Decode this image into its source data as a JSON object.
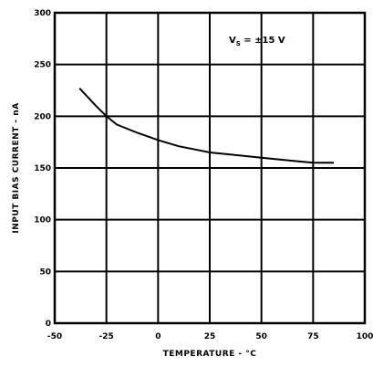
{
  "chart_data": {
    "type": "line",
    "xlabel": "TEMPERATURE - °C",
    "ylabel": "INPUT BIAS CURRENT - nA",
    "xlim": [
      -50,
      100
    ],
    "ylim": [
      0,
      300
    ],
    "xticks": [
      -50,
      -25,
      0,
      25,
      50,
      75,
      100
    ],
    "yticks": [
      0,
      50,
      100,
      150,
      200,
      250,
      300
    ],
    "x_tick_labels": [
      "-50",
      "-25",
      "0",
      "25",
      "50",
      "75",
      "100"
    ],
    "y_tick_labels": [
      "0",
      "50",
      "100",
      "150",
      "200",
      "250",
      "300"
    ],
    "grid": true,
    "annotation": {
      "main": "V",
      "sub": "S",
      "rest": " = ±15 V"
    },
    "series": [
      {
        "x": [
          -38,
          -30,
          -25,
          -20,
          -10,
          0,
          10,
          20,
          25,
          35,
          50,
          65,
          75,
          85
        ],
        "values": [
          227,
          210,
          200,
          192,
          184,
          177,
          171,
          167,
          165,
          163,
          160,
          157,
          155,
          155
        ]
      }
    ]
  }
}
